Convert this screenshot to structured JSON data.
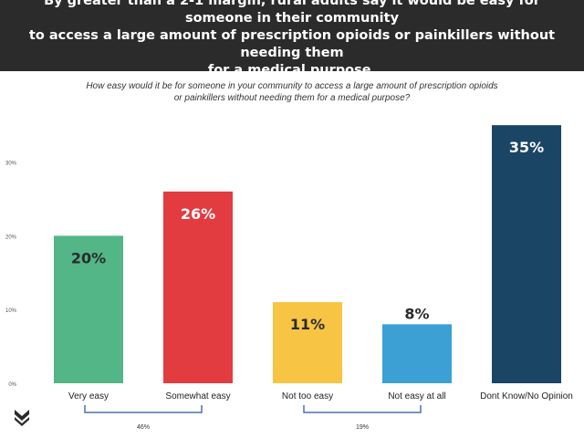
{
  "header": {
    "title": "By greater than a 2-1 margin, rural adults say it would be easy for someone in their community\nto access  a large amount of prescription opioids or painkillers without needing them\nfor a medical purpose."
  },
  "chart_data": {
    "type": "bar",
    "title": "How easy would it be for someone in your community to access a large amount of prescription opioids\nor painkillers without needing them for a medical purpose?",
    "categories": [
      "Very easy",
      "Somewhat easy",
      "Not too easy",
      "Not easy at all",
      "Dont Know/No Opinion"
    ],
    "values": [
      20,
      26,
      11,
      8,
      35
    ],
    "value_labels": [
      "20%",
      "26%",
      "11%",
      "8%",
      "35%"
    ],
    "colors": [
      "#52b686",
      "#e23c40",
      "#f7c443",
      "#3da0d5",
      "#1b4565"
    ],
    "label_colors": [
      "#2b2b2b",
      "#ffffff",
      "#2b2b2b",
      "#2b2b2b",
      "#ffffff"
    ],
    "label_placement": [
      "inside",
      "inside",
      "inside",
      "above",
      "inside"
    ],
    "ylim": [
      0,
      37
    ],
    "yticks": [
      0,
      10,
      20,
      30
    ],
    "ytick_labels": [
      "0%",
      "10%",
      "20%",
      "30%"
    ],
    "xlabel": "",
    "ylabel": "",
    "grid": false,
    "groups": [
      {
        "label": "46%",
        "from": 0,
        "to": 1
      },
      {
        "label": "19%",
        "from": 2,
        "to": 3
      }
    ]
  },
  "logo": {
    "icon": "chevron-logo-icon",
    "color": "#2b2b2b"
  }
}
